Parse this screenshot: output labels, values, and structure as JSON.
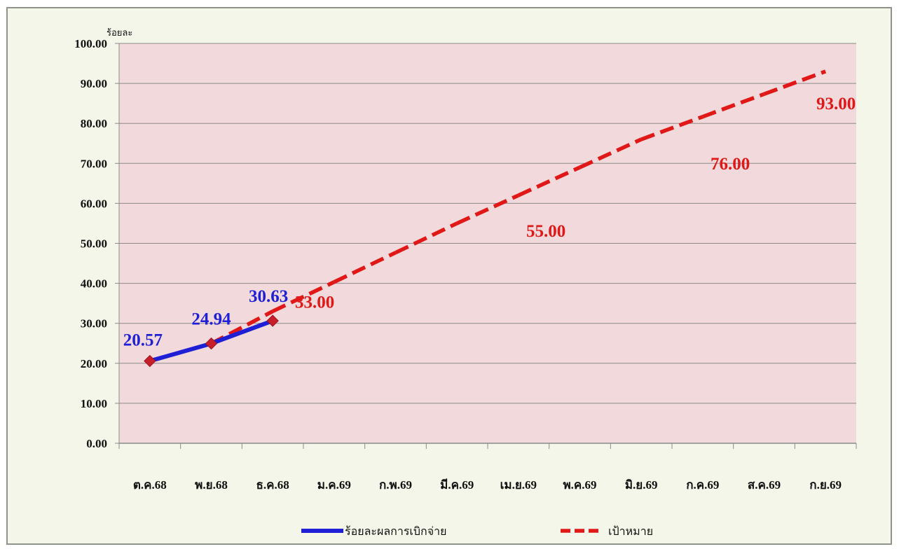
{
  "chart_data": {
    "type": "line",
    "ylabel": "ร้อยละ",
    "xlabel": "",
    "title": "",
    "ylim": [
      0,
      100
    ],
    "yticks": [
      "0.00",
      "10.00",
      "20.00",
      "30.00",
      "40.00",
      "50.00",
      "60.00",
      "70.00",
      "80.00",
      "90.00",
      "100.00"
    ],
    "categories": [
      "ต.ค.68",
      "พ.ย.68",
      "ธ.ค.68",
      "ม.ค.69",
      "ก.พ.69",
      "มี.ค.69",
      "เม.ย.69",
      "พ.ค.69",
      "มิ.ย.69",
      "ก.ค.69",
      "ส.ค.69",
      "ก.ย.69"
    ],
    "grid": true,
    "legend_position": "bottom",
    "series": [
      {
        "name": "ร้อยละผลการเบิกจ่าย",
        "color": "#1f1fd6",
        "style": "solid",
        "values": [
          20.57,
          24.94,
          30.63,
          null,
          null,
          null,
          null,
          null,
          null,
          null,
          null,
          null
        ],
        "labels": [
          "20.57",
          "24.94",
          "30.63"
        ]
      },
      {
        "name": "เป้าหมาย",
        "color": "#e01818",
        "style": "dashed",
        "values": [
          20.57,
          24.94,
          33.0,
          40.33,
          47.67,
          55.0,
          62.0,
          69.0,
          76.0,
          81.67,
          87.33,
          93.0
        ],
        "labels": [
          {
            "index": 2,
            "text": "33.00"
          },
          {
            "index": 5,
            "text": "55.00"
          },
          {
            "index": 8,
            "text": "76.00"
          },
          {
            "index": 11,
            "text": "93.00"
          }
        ]
      }
    ]
  }
}
